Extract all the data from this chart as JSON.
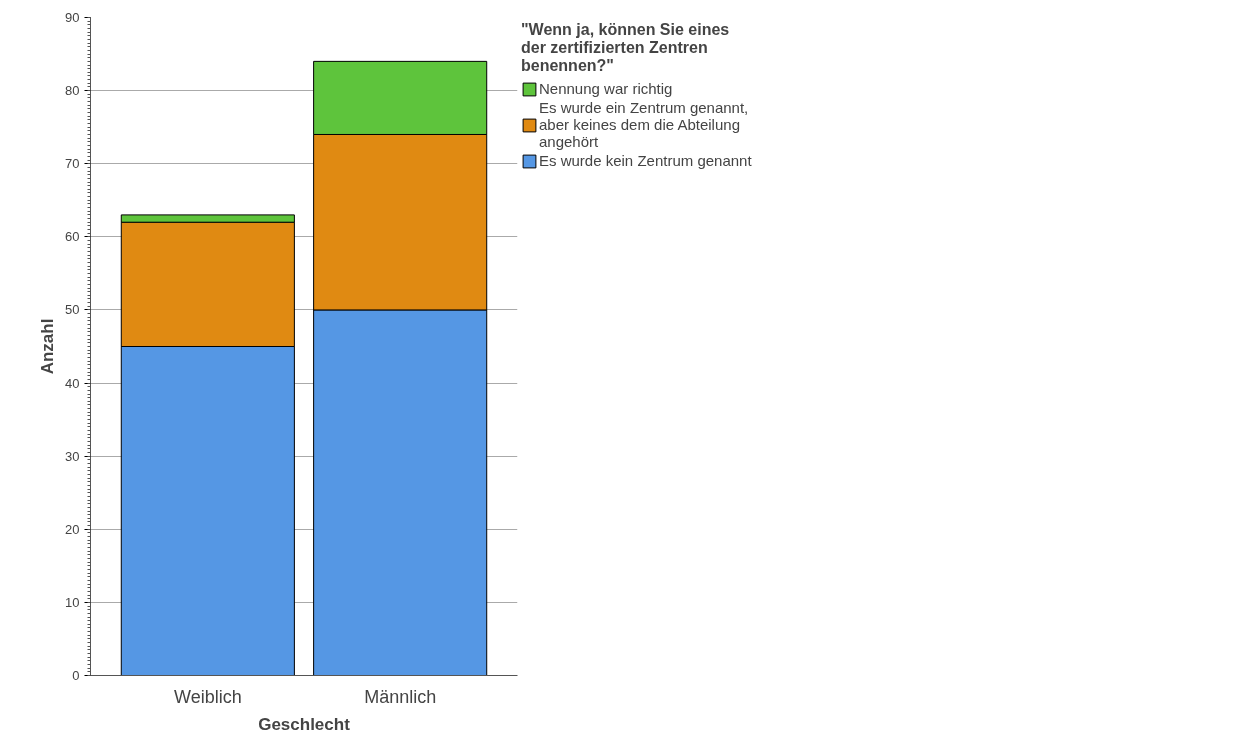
{
  "chart_data": {
    "type": "bar",
    "stacked": true,
    "xlabel": "Geschlecht",
    "ylabel": "Anzahl",
    "legend_title": "\"Wenn ja, können Sie eines der zertifizierten Zentren benennen?\"",
    "categories": [
      "Weiblich",
      "Männlich"
    ],
    "series": [
      {
        "name": "Es wurde kein Zentrum genannt",
        "color": "#5597e4",
        "values": [
          45,
          50
        ]
      },
      {
        "name": "Es wurde ein Zentrum genannt, aber keines dem die Abteilung angehört",
        "color": "#e08a12",
        "values": [
          17,
          24
        ]
      },
      {
        "name": "Nennung war richtig",
        "color": "#5ec43c",
        "values": [
          1,
          10
        ]
      }
    ],
    "ylim": [
      0,
      90
    ],
    "yticks": [
      0,
      10,
      20,
      30,
      40,
      50,
      60,
      70,
      80,
      90
    ],
    "grid": "y",
    "legend": "right"
  }
}
